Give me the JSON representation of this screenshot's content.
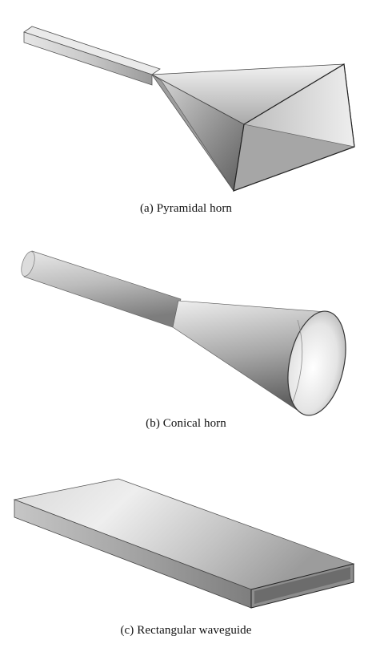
{
  "figures": [
    {
      "id": "a",
      "caption": "(a) Pyramidal horn"
    },
    {
      "id": "b",
      "caption": "(b) Conical horn"
    },
    {
      "id": "c",
      "caption": "(c) Rectangular waveguide"
    }
  ],
  "colors": {
    "background": "#ffffff",
    "caption": "#111111",
    "metal_light": "#e2e2e2",
    "metal_dark": "#6a6a6a"
  }
}
